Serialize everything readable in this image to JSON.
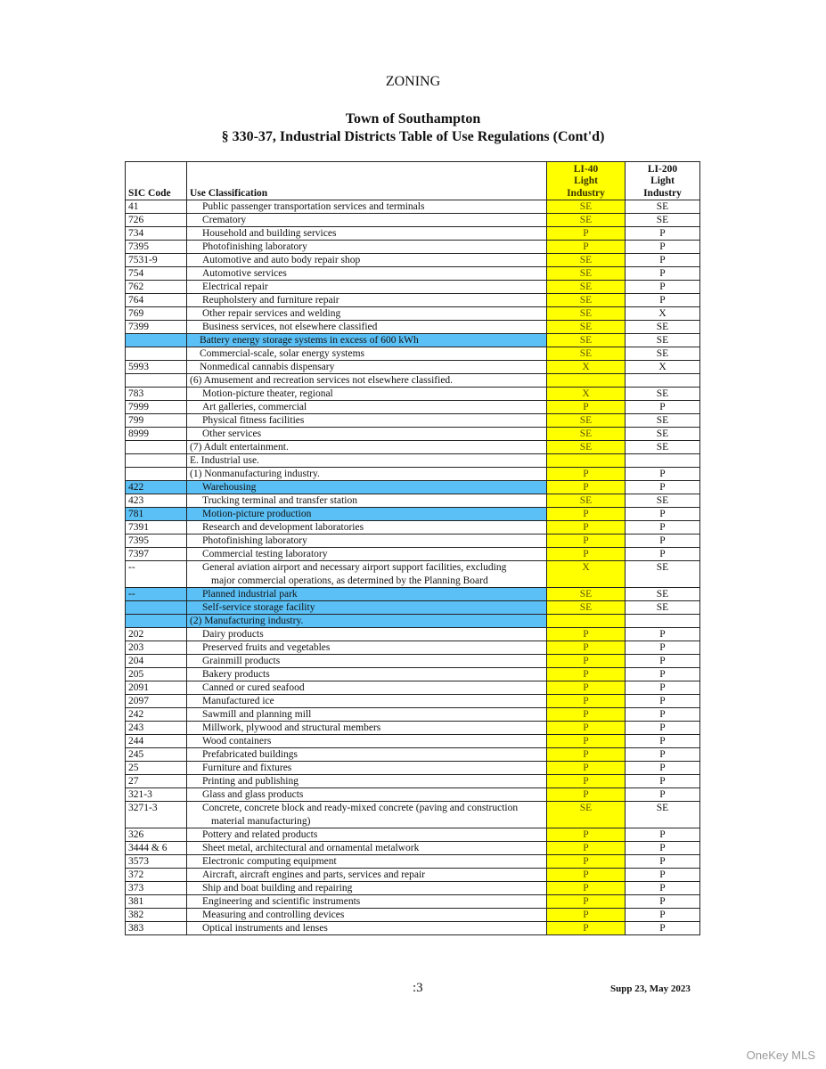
{
  "header": {
    "section": "ZONING",
    "town": "Town of Southampton",
    "title": "§ 330-37, Industrial Districts Table of Use Regulations (Cont'd)"
  },
  "table": {
    "columns": {
      "sic": "SIC Code",
      "use": "Use Classification",
      "li40": [
        "LI-40",
        "Light",
        "Industry"
      ],
      "li200": [
        "LI-200",
        "Light",
        "Industry"
      ]
    },
    "rows": [
      {
        "sic": "41",
        "use": "Public passenger transportation services and terminals",
        "li40": "SE",
        "li200": "SE",
        "indent": 1
      },
      {
        "sic": "726",
        "use": "Crematory",
        "li40": "SE",
        "li200": "SE",
        "indent": 1
      },
      {
        "sic": "734",
        "use": "Household and building services",
        "li40": "P",
        "li200": "P",
        "indent": 1
      },
      {
        "sic": "7395",
        "use": "Photofinishing laboratory",
        "li40": "P",
        "li200": "P",
        "indent": 1
      },
      {
        "sic": "7531-9",
        "use": "Automotive and auto body repair shop",
        "li40": "SE",
        "li200": "P",
        "indent": 1
      },
      {
        "sic": "754",
        "use": "Automotive services",
        "li40": "SE",
        "li200": "P",
        "indent": 1
      },
      {
        "sic": "762",
        "use": "Electrical repair",
        "li40": "SE",
        "li200": "P",
        "indent": 1
      },
      {
        "sic": "764",
        "use": "Reupholstery and furniture repair",
        "li40": "SE",
        "li200": "P",
        "indent": 1
      },
      {
        "sic": "769",
        "use": "Other repair services and welding",
        "li40": "SE",
        "li200": "X",
        "indent": 1
      },
      {
        "sic": "7399",
        "use": "Business services, not elsewhere classified",
        "li40": "SE",
        "li200": "SE",
        "indent": 1
      },
      {
        "sic": "",
        "use": "Battery energy storage systems in excess of 600 kWh",
        "li40": "SE",
        "li200": "SE",
        "indent": 2,
        "highlight": true
      },
      {
        "sic": "",
        "use": "Commercial-scale, solar energy systems",
        "li40": "SE",
        "li200": "SE",
        "indent": 2
      },
      {
        "sic": "5993",
        "use": "Nonmedical cannabis dispensary",
        "li40": "X",
        "li200": "X",
        "indent": 2
      },
      {
        "sic": "",
        "use": "(6) Amusement and recreation services not elsewhere classified.",
        "li40": "",
        "li200": "",
        "indent": 0
      },
      {
        "sic": "783",
        "use": "Motion-picture theater, regional",
        "li40": "X",
        "li200": "SE",
        "indent": 1
      },
      {
        "sic": "7999",
        "use": "Art galleries, commercial",
        "li40": "P",
        "li200": "P",
        "indent": 1
      },
      {
        "sic": "799",
        "use": "Physical fitness facilities",
        "li40": "SE",
        "li200": "SE",
        "indent": 1
      },
      {
        "sic": "8999",
        "use": "Other services",
        "li40": "SE",
        "li200": "SE",
        "indent": 1
      },
      {
        "sic": "",
        "use": "(7) Adult entertainment.",
        "li40": "SE",
        "li200": "SE",
        "indent": 0
      },
      {
        "sic": "",
        "use": "E. Industrial use.",
        "li40": "",
        "li200": "",
        "indent": 0
      },
      {
        "sic": "",
        "use": "(1) Nonmanufacturing industry.",
        "li40": "P",
        "li200": "P",
        "indent": 0
      },
      {
        "sic": "422",
        "use": "Warehousing",
        "li40": "P",
        "li200": "P",
        "indent": 1,
        "highlight": true
      },
      {
        "sic": "423",
        "use": "Trucking terminal and transfer station",
        "li40": "SE",
        "li200": "SE",
        "indent": 1
      },
      {
        "sic": "781",
        "use": "Motion-picture production",
        "li40": "P",
        "li200": "P",
        "indent": 1,
        "highlight": true
      },
      {
        "sic": "7391",
        "use": "Research and development laboratories",
        "li40": "P",
        "li200": "P",
        "indent": 1
      },
      {
        "sic": "7395",
        "use": "Photofinishing laboratory",
        "li40": "P",
        "li200": "P",
        "indent": 1
      },
      {
        "sic": "7397",
        "use": "Commercial testing laboratory",
        "li40": "P",
        "li200": "P",
        "indent": 1
      },
      {
        "sic": "--",
        "use": "General aviation airport and necessary airport support facilities, excluding",
        "use_cont": "major commercial operations, as determined by the Planning Board",
        "li40": "X",
        "li200": "SE",
        "indent": 1
      },
      {
        "sic": "--",
        "use": "Planned industrial park",
        "li40": "SE",
        "li200": "SE",
        "indent": 1,
        "highlight": true
      },
      {
        "sic": "",
        "use": "Self-service storage facility",
        "li40": "SE",
        "li200": "SE",
        "indent": 1,
        "highlight": true
      },
      {
        "sic": "",
        "use": "(2) Manufacturing industry.",
        "li40": "",
        "li200": "",
        "indent": 0,
        "highlight": true
      },
      {
        "sic": "202",
        "use": "Dairy products",
        "li40": "P",
        "li200": "P",
        "indent": 1
      },
      {
        "sic": "203",
        "use": "Preserved fruits and vegetables",
        "li40": "P",
        "li200": "P",
        "indent": 1
      },
      {
        "sic": "204",
        "use": "Grainmill products",
        "li40": "P",
        "li200": "P",
        "indent": 1
      },
      {
        "sic": "205",
        "use": "Bakery products",
        "li40": "P",
        "li200": "P",
        "indent": 1
      },
      {
        "sic": "2091",
        "use": "Canned or cured seafood",
        "li40": "P",
        "li200": "P",
        "indent": 1
      },
      {
        "sic": "2097",
        "use": "Manufactured ice",
        "li40": "P",
        "li200": "P",
        "indent": 1
      },
      {
        "sic": "242",
        "use": "Sawmill and planning mill",
        "li40": "P",
        "li200": "P",
        "indent": 1
      },
      {
        "sic": "243",
        "use": "Millwork, plywood and structural members",
        "li40": "P",
        "li200": "P",
        "indent": 1
      },
      {
        "sic": "244",
        "use": "Wood containers",
        "li40": "P",
        "li200": "P",
        "indent": 1
      },
      {
        "sic": "245",
        "use": "Prefabricated buildings",
        "li40": "P",
        "li200": "P",
        "indent": 1
      },
      {
        "sic": "25",
        "use": "Furniture and fixtures",
        "li40": "P",
        "li200": "P",
        "indent": 1
      },
      {
        "sic": "27",
        "use": "Printing and publishing",
        "li40": "P",
        "li200": "P",
        "indent": 1
      },
      {
        "sic": "321-3",
        "use": "Glass and glass products",
        "li40": "P",
        "li200": "P",
        "indent": 1
      },
      {
        "sic": "3271-3",
        "use": "Concrete, concrete block and ready-mixed concrete (paving and construction",
        "use_cont": "material manufacturing)",
        "li40": "SE",
        "li200": "SE",
        "indent": 1
      },
      {
        "sic": "326",
        "use": "Pottery and related products",
        "li40": "P",
        "li200": "P",
        "indent": 1
      },
      {
        "sic": "3444 & 6",
        "use": "Sheet metal, architectural and ornamental metalwork",
        "li40": "P",
        "li200": "P",
        "indent": 1
      },
      {
        "sic": "3573",
        "use": "Electronic computing equipment",
        "li40": "P",
        "li200": "P",
        "indent": 1
      },
      {
        "sic": "372",
        "use": "Aircraft, aircraft engines and parts, services and repair",
        "li40": "P",
        "li200": "P",
        "indent": 1
      },
      {
        "sic": "373",
        "use": "Ship and boat building and repairing",
        "li40": "P",
        "li200": "P",
        "indent": 1
      },
      {
        "sic": "381",
        "use": "Engineering and scientific instruments",
        "li40": "P",
        "li200": "P",
        "indent": 1
      },
      {
        "sic": "382",
        "use": "Measuring and controlling devices",
        "li40": "P",
        "li200": "P",
        "indent": 1
      },
      {
        "sic": "383",
        "use": "Optical instruments and lenses",
        "li40": "P",
        "li200": "P",
        "indent": 1
      }
    ]
  },
  "footer": {
    "page": ":3",
    "supplement": "Supp 23, May 2023"
  },
  "watermark": "OneKey MLS",
  "colors": {
    "li40_highlight": "#ffff00",
    "row_highlight": "#5bc0f5"
  }
}
